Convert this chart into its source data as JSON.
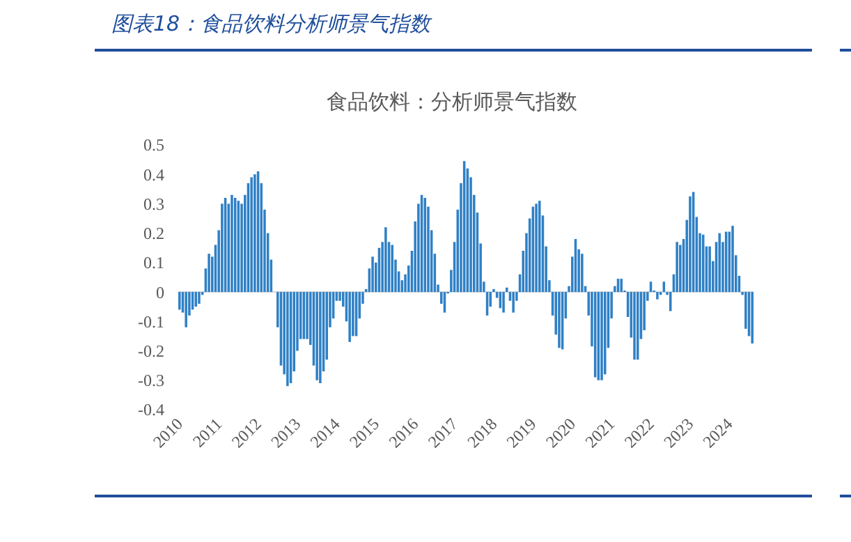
{
  "chart_data": {
    "type": "bar",
    "title": "图表18：食品饮料分析师景气指数",
    "subtitle": "食品饮料：分析师景气指数",
    "categories": [
      "2010",
      null,
      null,
      null,
      null,
      null,
      null,
      null,
      null,
      null,
      null,
      null,
      "2011",
      null,
      null,
      null,
      null,
      null,
      null,
      null,
      null,
      null,
      null,
      null,
      "2012",
      null,
      null,
      null,
      null,
      null,
      null,
      null,
      null,
      null,
      null,
      null,
      "2013",
      null,
      null,
      null,
      null,
      null,
      null,
      null,
      null,
      null,
      null,
      null,
      "2014",
      null,
      null,
      null,
      null,
      null,
      null,
      null,
      null,
      null,
      null,
      null,
      "2015",
      null,
      null,
      null,
      null,
      null,
      null,
      null,
      null,
      null,
      null,
      null,
      "2016",
      null,
      null,
      null,
      null,
      null,
      null,
      null,
      null,
      null,
      null,
      null,
      "2017",
      null,
      null,
      null,
      null,
      null,
      null,
      null,
      null,
      null,
      null,
      null,
      "2018",
      null,
      null,
      null,
      null,
      null,
      null,
      null,
      null,
      null,
      null,
      null,
      "2019",
      null,
      null,
      null,
      null,
      null,
      null,
      null,
      null,
      null,
      null,
      null,
      "2020",
      null,
      null,
      null,
      null,
      null,
      null,
      null,
      null,
      null,
      null,
      null,
      "2021",
      null,
      null,
      null,
      null,
      null,
      null,
      null,
      null,
      null,
      null,
      null,
      "2022",
      null,
      null,
      null,
      null,
      null,
      null,
      null,
      null,
      null,
      null,
      null,
      "2023",
      null,
      null,
      null,
      null,
      null,
      null,
      null,
      null,
      null,
      null,
      null,
      "2024",
      null,
      null,
      null,
      null,
      null,
      null,
      null
    ],
    "values": [
      -0.06,
      -0.07,
      -0.12,
      -0.08,
      -0.06,
      -0.05,
      -0.04,
      -0.01,
      0.08,
      0.13,
      0.12,
      0.16,
      0.21,
      0.3,
      0.32,
      0.3,
      0.33,
      0.32,
      0.31,
      0.3,
      0.33,
      0.37,
      0.39,
      0.4,
      0.41,
      0.37,
      0.28,
      0.2,
      0.11,
      0.0,
      -0.12,
      -0.25,
      -0.28,
      -0.32,
      -0.31,
      -0.27,
      -0.2,
      -0.16,
      -0.16,
      -0.16,
      -0.18,
      -0.25,
      -0.3,
      -0.31,
      -0.27,
      -0.23,
      -0.12,
      -0.09,
      -0.03,
      -0.03,
      -0.05,
      -0.1,
      -0.17,
      -0.15,
      -0.15,
      -0.09,
      -0.04,
      0.01,
      0.08,
      0.12,
      0.1,
      0.15,
      0.17,
      0.22,
      0.17,
      0.16,
      0.11,
      0.07,
      0.04,
      0.06,
      0.09,
      0.14,
      0.24,
      0.3,
      0.33,
      0.32,
      0.29,
      0.21,
      0.13,
      0.025,
      -0.04,
      -0.07,
      -0.005,
      0.075,
      0.17,
      0.28,
      0.37,
      0.445,
      0.42,
      0.39,
      0.33,
      0.27,
      0.165,
      0.035,
      -0.08,
      -0.05,
      0.01,
      -0.02,
      -0.055,
      -0.07,
      0.015,
      -0.03,
      -0.07,
      -0.03,
      0.06,
      0.14,
      0.2,
      0.25,
      0.29,
      0.3,
      0.31,
      0.26,
      0.155,
      0.04,
      -0.08,
      -0.145,
      -0.19,
      -0.195,
      -0.09,
      0.02,
      0.12,
      0.18,
      0.145,
      0.13,
      0.02,
      -0.08,
      -0.185,
      -0.29,
      -0.3,
      -0.3,
      -0.28,
      -0.19,
      -0.09,
      0.02,
      0.045,
      0.045,
      0.005,
      -0.085,
      -0.155,
      -0.23,
      -0.23,
      -0.16,
      -0.13,
      -0.03,
      0.035,
      0.005,
      -0.025,
      -0.01,
      0.035,
      -0.01,
      -0.065,
      0.06,
      0.17,
      0.16,
      0.18,
      0.245,
      0.325,
      0.34,
      0.255,
      0.2,
      0.195,
      0.155,
      0.155,
      0.105,
      0.17,
      0.2,
      0.17,
      0.205,
      0.205,
      0.225,
      0.125,
      0.055,
      -0.01,
      -0.125,
      -0.15,
      -0.175
    ],
    "color": "#2f80c6",
    "ylim": [
      -0.4,
      0.5
    ],
    "yticks": [
      -0.4,
      -0.3,
      -0.2,
      -0.1,
      0,
      0.1,
      0.2,
      0.3,
      0.4,
      0.5
    ]
  }
}
